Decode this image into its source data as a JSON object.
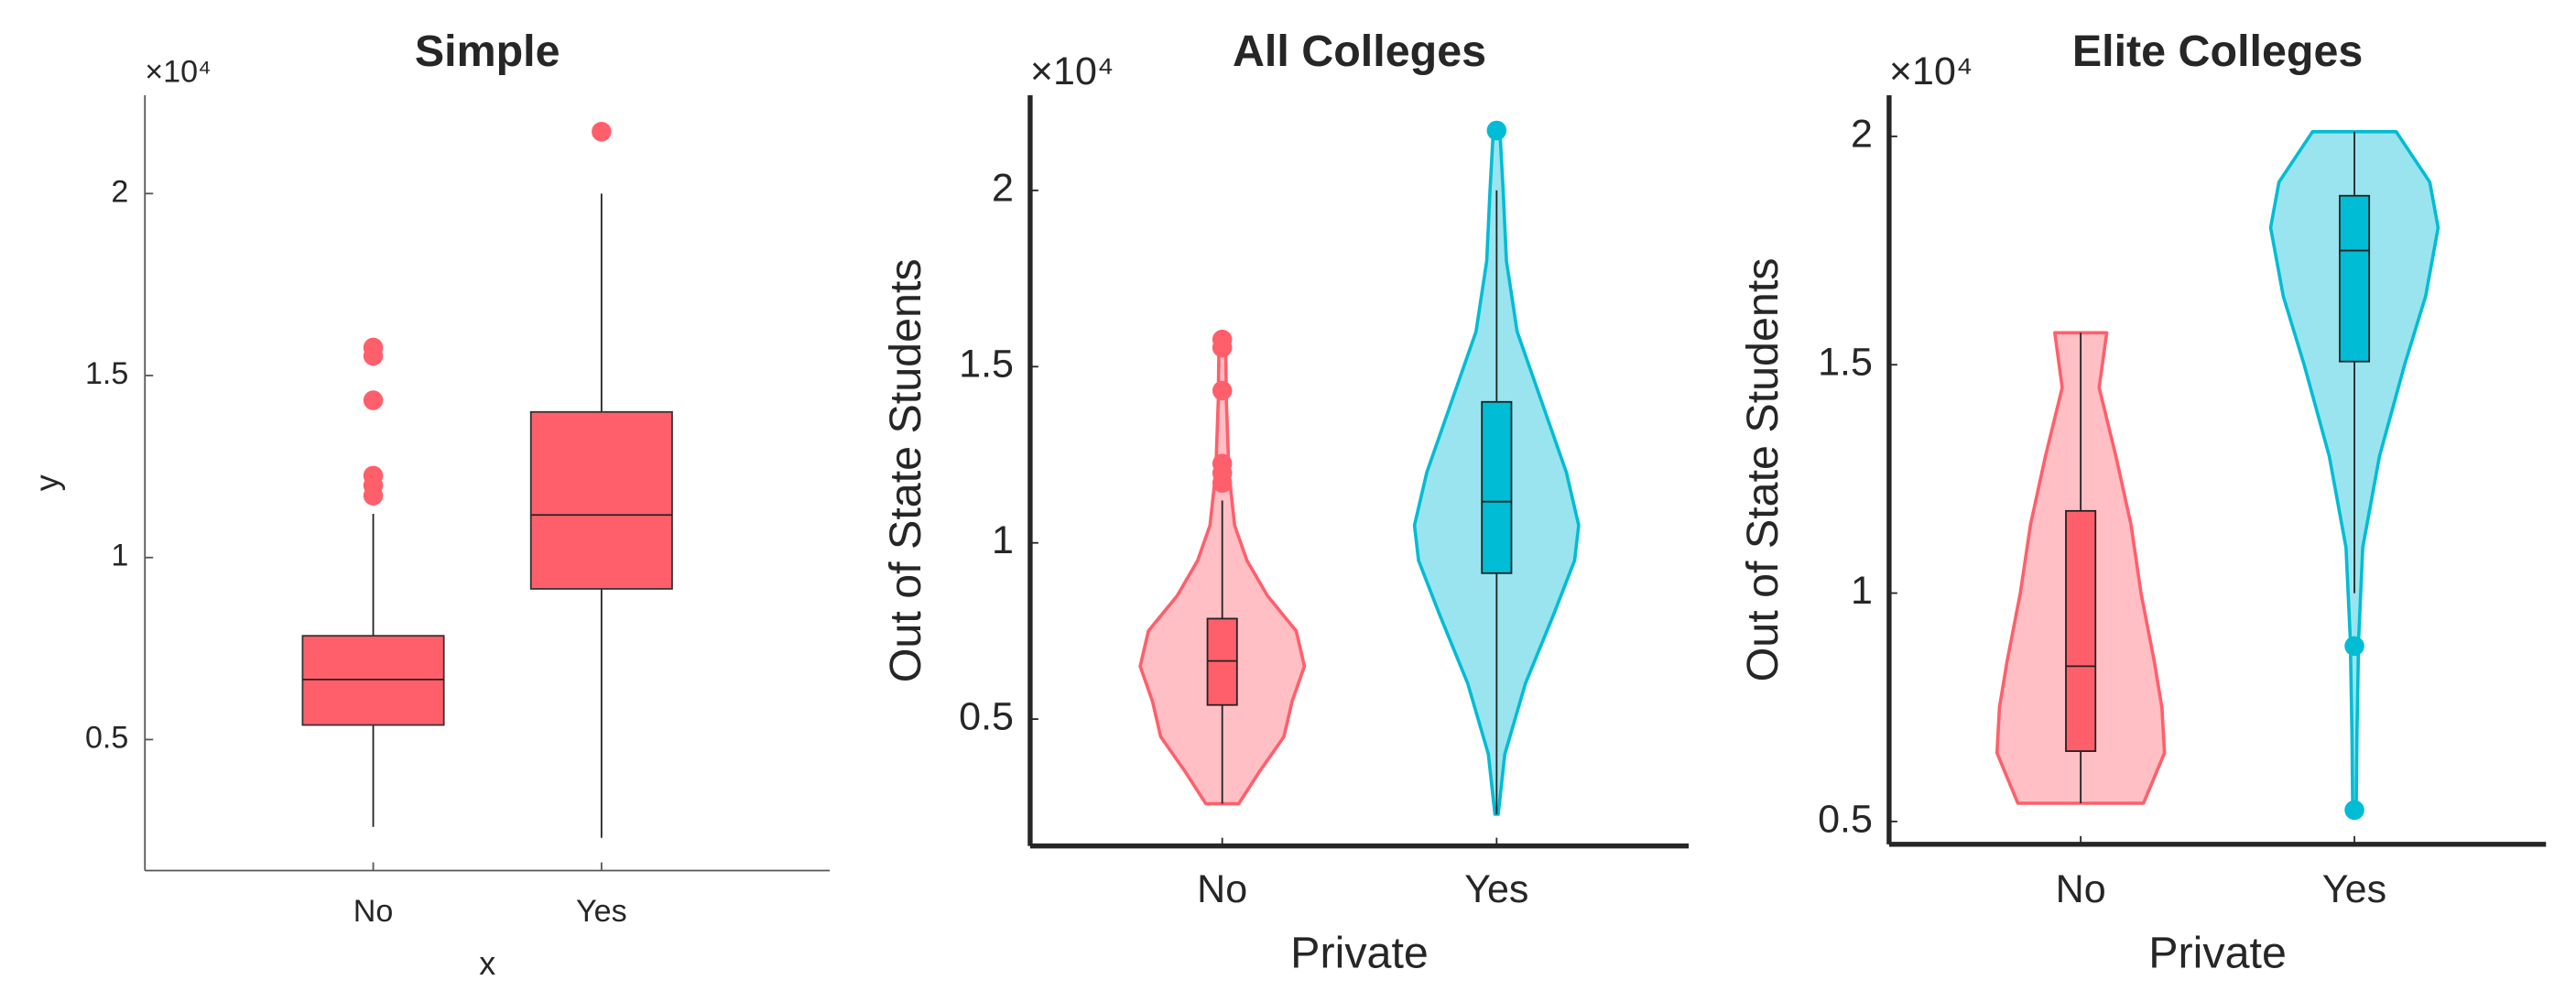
{
  "chart_data": [
    {
      "type": "box",
      "title": "Simple",
      "x_label": "x",
      "y_label": "y",
      "y_exponent": "×10⁴",
      "categories": [
        "No",
        "Yes"
      ],
      "color": "#ff5f6b",
      "ylim": [
        1400,
        22700
      ],
      "yticks": [
        {
          "value": 5000,
          "label": "0.5"
        },
        {
          "value": 10000,
          "label": "1"
        },
        {
          "value": 15000,
          "label": "1.5"
        },
        {
          "value": 20000,
          "label": "2"
        }
      ],
      "boxes": [
        {
          "whisker_low": 2600,
          "q1": 5400,
          "median": 6650,
          "q3": 7850,
          "whisker_high": 11200,
          "outliers": [
            11700,
            11980,
            12250,
            14320,
            15540,
            15770
          ]
        },
        {
          "whisker_low": 2300,
          "q1": 9140,
          "median": 11170,
          "q3": 14000,
          "whisker_high": 20000,
          "outliers": [
            21700
          ]
        }
      ]
    },
    {
      "type": "violin",
      "title": "All Colleges",
      "x_label": "Private",
      "y_label": "Out of State Students",
      "y_exponent": "×10⁴",
      "categories": [
        "No",
        "Yes"
      ],
      "colors": [
        "#ff5f6b",
        "#00bcd4"
      ],
      "ylim": [
        1400,
        22700
      ],
      "yticks": [
        {
          "value": 5000,
          "label": "0.5"
        },
        {
          "value": 10000,
          "label": "1"
        },
        {
          "value": 15000,
          "label": "1.5"
        },
        {
          "value": 20000,
          "label": "2"
        }
      ],
      "violins": [
        {
          "y": [
            2600,
            3500,
            4500,
            5500,
            6500,
            7500,
            8500,
            9500,
            10500,
            12000,
            14000,
            15700
          ],
          "density": [
            0.2,
            0.45,
            0.75,
            0.85,
            1.0,
            0.9,
            0.55,
            0.3,
            0.15,
            0.08,
            0.05,
            0.04
          ]
        },
        {
          "y": [
            2300,
            4000,
            6000,
            8000,
            9500,
            10500,
            12000,
            14000,
            16000,
            18000,
            20000,
            21700
          ],
          "density": [
            0.02,
            0.1,
            0.35,
            0.7,
            0.95,
            1.0,
            0.85,
            0.55,
            0.25,
            0.12,
            0.08,
            0.04
          ]
        }
      ],
      "boxes": [
        {
          "whisker_low": 2600,
          "q1": 5400,
          "median": 6650,
          "q3": 7850,
          "whisker_high": 11200,
          "outliers": [
            11700,
            11980,
            12250,
            14320,
            15540,
            15770
          ]
        },
        {
          "whisker_low": 2300,
          "q1": 9140,
          "median": 11170,
          "q3": 14000,
          "whisker_high": 20000,
          "outliers": [
            21700
          ]
        }
      ]
    },
    {
      "type": "violin",
      "title": "Elite Colleges",
      "x_label": "Private",
      "y_label": "Out of State Students",
      "y_exponent": "×10⁴",
      "categories": [
        "No",
        "Yes"
      ],
      "colors": [
        "#ff5f6b",
        "#00bcd4"
      ],
      "ylim": [
        4500,
        20900
      ],
      "yticks": [
        {
          "value": 5000,
          "label": "0.5"
        },
        {
          "value": 10000,
          "label": "1"
        },
        {
          "value": 15000,
          "label": "1.5"
        },
        {
          "value": 20000,
          "label": "2"
        }
      ],
      "violins": [
        {
          "y": [
            5400,
            6500,
            7500,
            8500,
            10000,
            11500,
            13000,
            14500,
            15700
          ],
          "density": [
            0.75,
            1.0,
            0.97,
            0.88,
            0.72,
            0.6,
            0.42,
            0.22,
            0.31
          ]
        },
        {
          "y": [
            5200,
            7000,
            9000,
            11000,
            13000,
            15000,
            16500,
            18000,
            19000,
            20100
          ],
          "density": [
            0.02,
            0.03,
            0.05,
            0.1,
            0.3,
            0.6,
            0.85,
            1.0,
            0.9,
            0.5
          ]
        }
      ],
      "boxes": [
        {
          "whisker_low": 5400,
          "q1": 6540,
          "median": 8400,
          "q3": 11800,
          "whisker_high": 15700,
          "outliers": []
        },
        {
          "whisker_low": 10000,
          "q1": 15070,
          "median": 17500,
          "q3": 18700,
          "whisker_high": 20100,
          "outliers": [
            8840,
            5250
          ]
        }
      ]
    }
  ]
}
